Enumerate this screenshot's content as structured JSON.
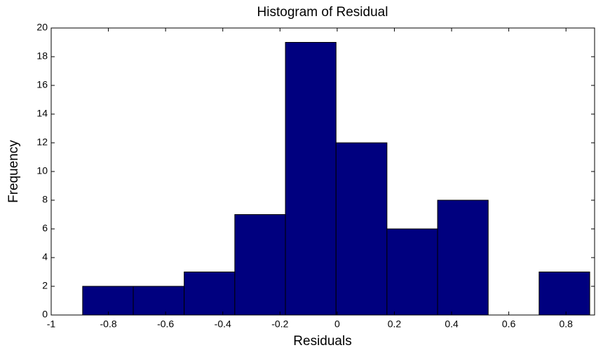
{
  "chart_data": {
    "type": "histogram",
    "title": "Histogram of Residual",
    "x_label": "Residuals",
    "y_label": "Frequency",
    "bins": [
      -0.89,
      -0.713,
      -0.535,
      -0.358,
      -0.181,
      -0.004,
      0.174,
      0.351,
      0.528,
      0.706,
      0.883
    ],
    "values": [
      2,
      2,
      3,
      7,
      19,
      12,
      6,
      8,
      0,
      3
    ],
    "color": "#00007f",
    "xlim": [
      -1,
      0.9
    ],
    "xticks": [
      -1,
      -0.8,
      -0.6,
      -0.4,
      -0.2,
      0,
      0.2,
      0.4,
      0.6,
      0.8
    ],
    "ylim": [
      0,
      20
    ],
    "yticks": [
      0,
      2,
      4,
      6,
      8,
      10,
      12,
      14,
      16,
      18,
      20
    ]
  }
}
